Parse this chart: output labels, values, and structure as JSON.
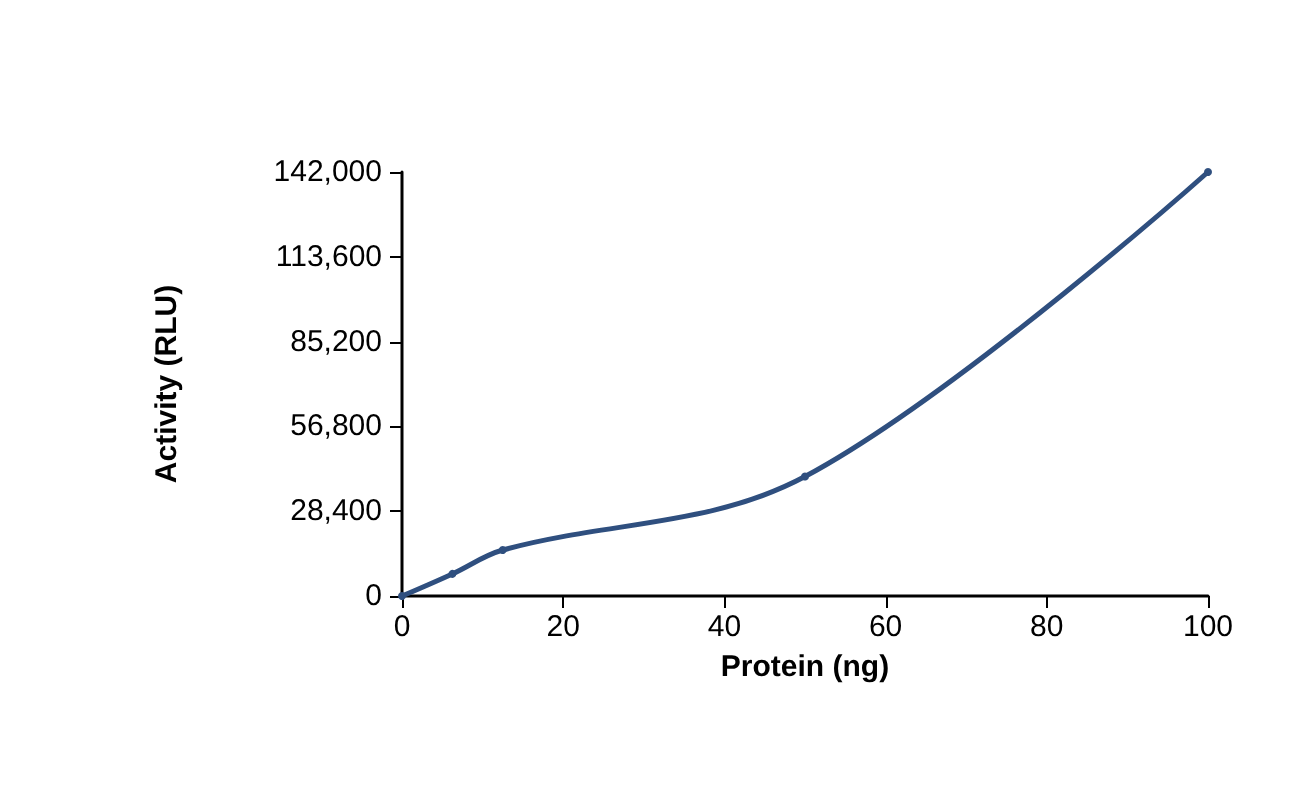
{
  "chart_data": {
    "type": "line",
    "xlabel": "Protein (ng)",
    "ylabel": "Activity (RLU)",
    "x": [
      0,
      6.25,
      12.5,
      50,
      100
    ],
    "series": [
      {
        "color": "#2f4f7f",
        "values": [
          0,
          7400,
          15400,
          40000,
          142000
        ]
      }
    ],
    "xlim": [
      0,
      100
    ],
    "xticks": [
      0,
      20,
      40,
      60,
      80,
      100
    ],
    "ylim": [
      0,
      142000
    ],
    "yticks": [
      0,
      {
        "value": 28400,
        "label": "28,400"
      },
      {
        "value": 56800,
        "label": "56,800"
      },
      {
        "value": 85200,
        "label": "85,200"
      },
      {
        "value": 113600,
        "label": "113,600"
      },
      {
        "value": 142000,
        "label": "142,000"
      }
    ],
    "grid": false,
    "marker": "circle",
    "line_style": "solid"
  }
}
